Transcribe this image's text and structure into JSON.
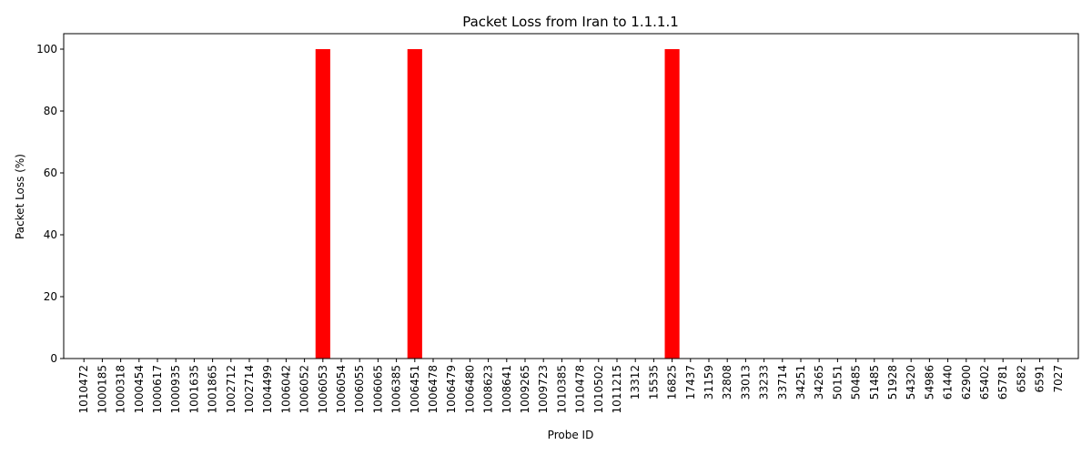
{
  "chart_data": {
    "type": "bar",
    "title": "Packet Loss from Iran to 1.1.1.1",
    "xlabel": "Probe ID",
    "ylabel": "Packet Loss (%)",
    "ylim": [
      0,
      105
    ],
    "yticks": [
      0,
      20,
      40,
      60,
      80,
      100
    ],
    "grid": false,
    "bar_color": "#ff0000",
    "categories": [
      "1010472",
      "1000185",
      "1000318",
      "1000454",
      "1000617",
      "1000935",
      "1001635",
      "1001865",
      "1002712",
      "1002714",
      "1004499",
      "1006042",
      "1006052",
      "1006053",
      "1006054",
      "1006055",
      "1006065",
      "1006385",
      "1006451",
      "1006478",
      "1006479",
      "1006480",
      "1008623",
      "1008641",
      "1009265",
      "1009723",
      "1010385",
      "1010478",
      "1010502",
      "1011215",
      "13312",
      "15535",
      "16825",
      "17437",
      "31159",
      "32808",
      "33013",
      "33233",
      "33714",
      "34251",
      "34265",
      "50151",
      "50485",
      "51485",
      "51928",
      "54320",
      "54986",
      "61440",
      "62900",
      "65402",
      "65781",
      "6582",
      "6591",
      "7027"
    ],
    "values": [
      0,
      0,
      0,
      0,
      0,
      0,
      0,
      0,
      0,
      0,
      0,
      0,
      0,
      100,
      0,
      0,
      0,
      0,
      100,
      0,
      0,
      0,
      0,
      0,
      0,
      0,
      0,
      0,
      0,
      0,
      0,
      0,
      100,
      0,
      0,
      0,
      0,
      0,
      0,
      0,
      0,
      0,
      0,
      0,
      0,
      0,
      0,
      0,
      0,
      0,
      0,
      0,
      0,
      0
    ]
  }
}
